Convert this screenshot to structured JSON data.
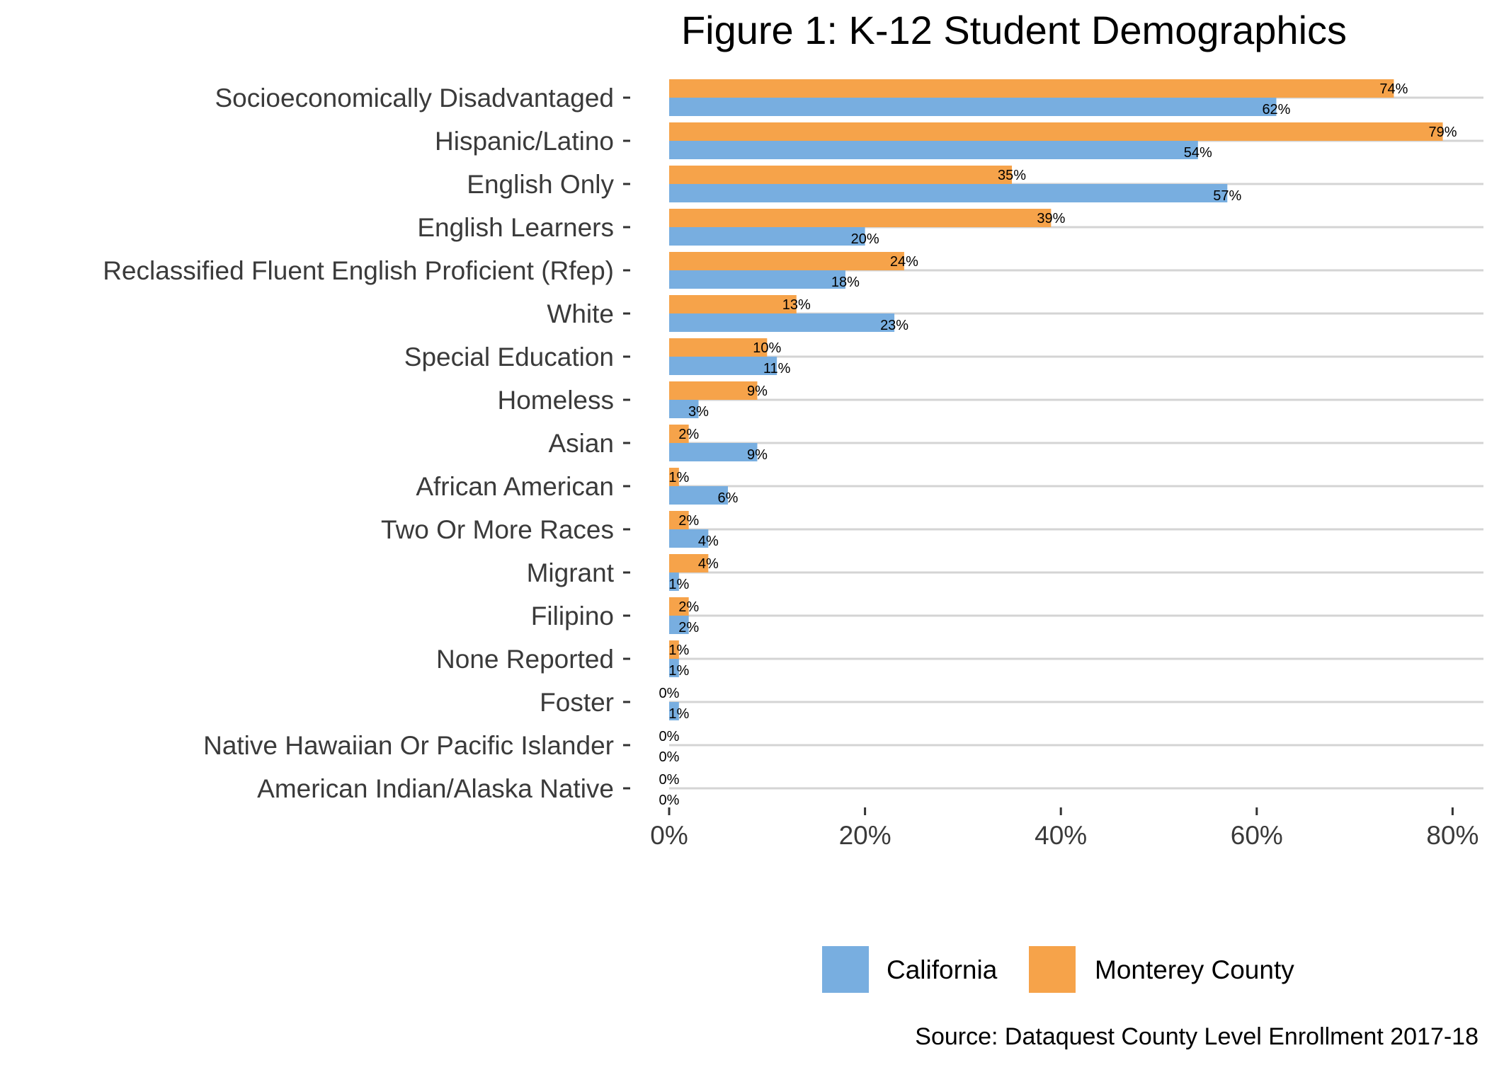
{
  "chart_data": {
    "type": "bar",
    "orientation": "horizontal",
    "title": "Figure 1: K-12 Student Demographics",
    "xlabel": "",
    "ylabel": "",
    "xlim": [
      0,
      80
    ],
    "x_ticks": [
      "0%",
      "20%",
      "40%",
      "60%",
      "80%"
    ],
    "grid": "horizontal",
    "legend_position": "bottom-right",
    "caption": "Source: Dataquest County Level Enrollment 2017-18",
    "categories": [
      "Socioeconomically Disadvantaged",
      "Hispanic/Latino",
      "English Only",
      "English Learners",
      "Reclassified Fluent English Proficient (Rfep)",
      "White",
      "Special Education",
      "Homeless",
      "Asian",
      "African American",
      "Two Or More Races",
      "Migrant",
      "Filipino",
      "None  Reported",
      "Foster",
      "Native Hawaiian Or Pacific Islander",
      "American Indian/Alaska Native"
    ],
    "series": [
      {
        "name": "Monterey County",
        "color": "#f6a34a",
        "values": [
          74,
          79,
          35,
          39,
          24,
          13,
          10,
          9,
          2,
          1,
          2,
          4,
          2,
          1,
          0,
          0,
          0
        ],
        "labels": [
          "74%",
          "79%",
          "35%",
          "39%",
          "24%",
          "13%",
          "10%",
          "9%",
          "2%",
          "1%",
          "2%",
          "4%",
          "2%",
          "1%",
          "0%",
          "0%",
          "0%"
        ]
      },
      {
        "name": "California",
        "color": "#78aee0",
        "values": [
          62,
          54,
          57,
          20,
          18,
          23,
          11,
          3,
          9,
          6,
          4,
          1,
          2,
          1,
          1,
          0,
          0
        ],
        "labels": [
          "62%",
          "54%",
          "57%",
          "20%",
          "18%",
          "23%",
          "11%",
          "3%",
          "9%",
          "6%",
          "4%",
          "1%",
          "2%",
          "1%",
          "1%",
          "0%",
          "0%"
        ]
      }
    ],
    "legend": [
      {
        "name": "California",
        "color": "#78aee0"
      },
      {
        "name": "Monterey County",
        "color": "#f6a34a"
      }
    ]
  }
}
